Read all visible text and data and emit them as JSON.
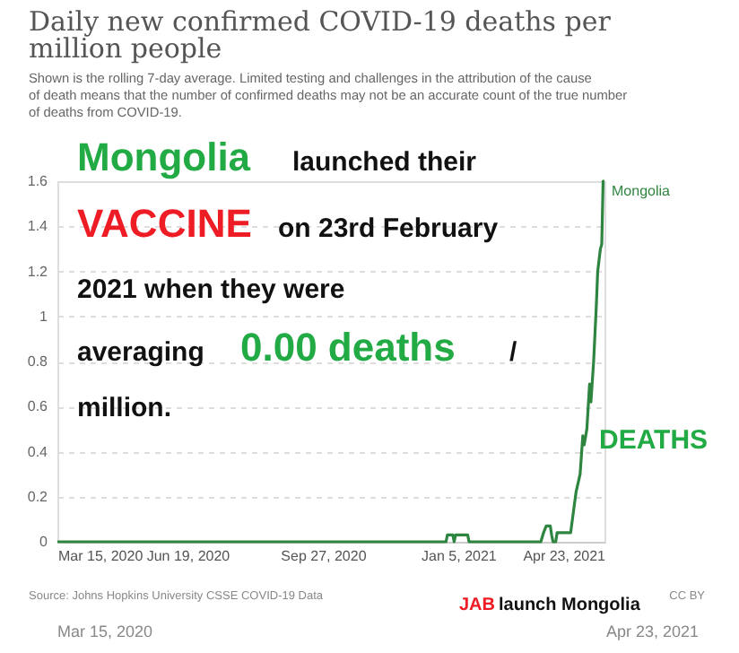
{
  "chart_data": {
    "type": "line",
    "title": "Daily new confirmed COVID-19 deaths per million people",
    "subtitle": "Shown is the rolling 7-day average. Limited testing and challenges in the attribution of the cause of death means that the number of confirmed deaths may not be an accurate count of the true number of deaths from COVID-19.",
    "x": [
      "2020-03-15",
      "2020-12-27",
      "2020-12-28",
      "2021-01-01",
      "2021-01-02",
      "2021-01-03",
      "2021-01-12",
      "2021-01-13",
      "2021-03-07",
      "2021-03-09",
      "2021-03-11",
      "2021-03-14",
      "2021-03-15",
      "2021-03-16",
      "2021-03-18",
      "2021-03-19",
      "2021-03-29",
      "2021-03-31",
      "2021-04-02",
      "2021-04-05",
      "2021-04-07",
      "2021-04-08",
      "2021-04-10",
      "2021-04-12",
      "2021-04-13",
      "2021-04-15",
      "2021-04-17",
      "2021-04-18",
      "2021-04-20",
      "2021-04-21",
      "2021-04-22",
      "2021-04-23"
    ],
    "series": [
      {
        "name": "Mongolia",
        "color": "#2e8540",
        "values": [
          0,
          0,
          0.03,
          0.03,
          0,
          0.03,
          0.03,
          0,
          0,
          0.04,
          0.07,
          0.07,
          0.03,
          0,
          0,
          0.04,
          0.04,
          0.13,
          0.22,
          0.3,
          0.47,
          0.43,
          0.5,
          0.7,
          0.62,
          0.8,
          1.05,
          1.2,
          1.3,
          1.32,
          1.6,
          1.6
        ]
      }
    ],
    "xlim": [
      "2020-03-15",
      "2021-04-23"
    ],
    "xticks": [
      {
        "value": "2020-03-15",
        "label": "Mar 15, 2020"
      },
      {
        "value": "2020-06-19",
        "label": "Jun 19, 2020"
      },
      {
        "value": "2020-09-27",
        "label": "Sep 27, 2020"
      },
      {
        "value": "2021-01-05",
        "label": "Jan 5, 2021"
      },
      {
        "value": "2021-04-23",
        "label": "Apr 23, 2021"
      }
    ],
    "ylim": [
      0,
      1.6
    ],
    "yticks": [
      0,
      0.2,
      0.4,
      0.6,
      0.8,
      1,
      1.2,
      1.4,
      1.6
    ],
    "grid": "y",
    "legend": false,
    "marker": "none",
    "line_style": "solid",
    "annotations": [
      "Mongolia",
      "launched their",
      "VACCINE",
      "on 23rd February",
      "2021 when they were",
      "averaging",
      "0.00 deaths",
      "/",
      "million.",
      "DEATHS",
      "JAB",
      "launch Mongolia",
      "Source: Johns Hopkins University CSSE COVID-19 Data",
      "CC BY",
      "Mar 15, 2020",
      "Apr 23, 2021"
    ]
  }
}
